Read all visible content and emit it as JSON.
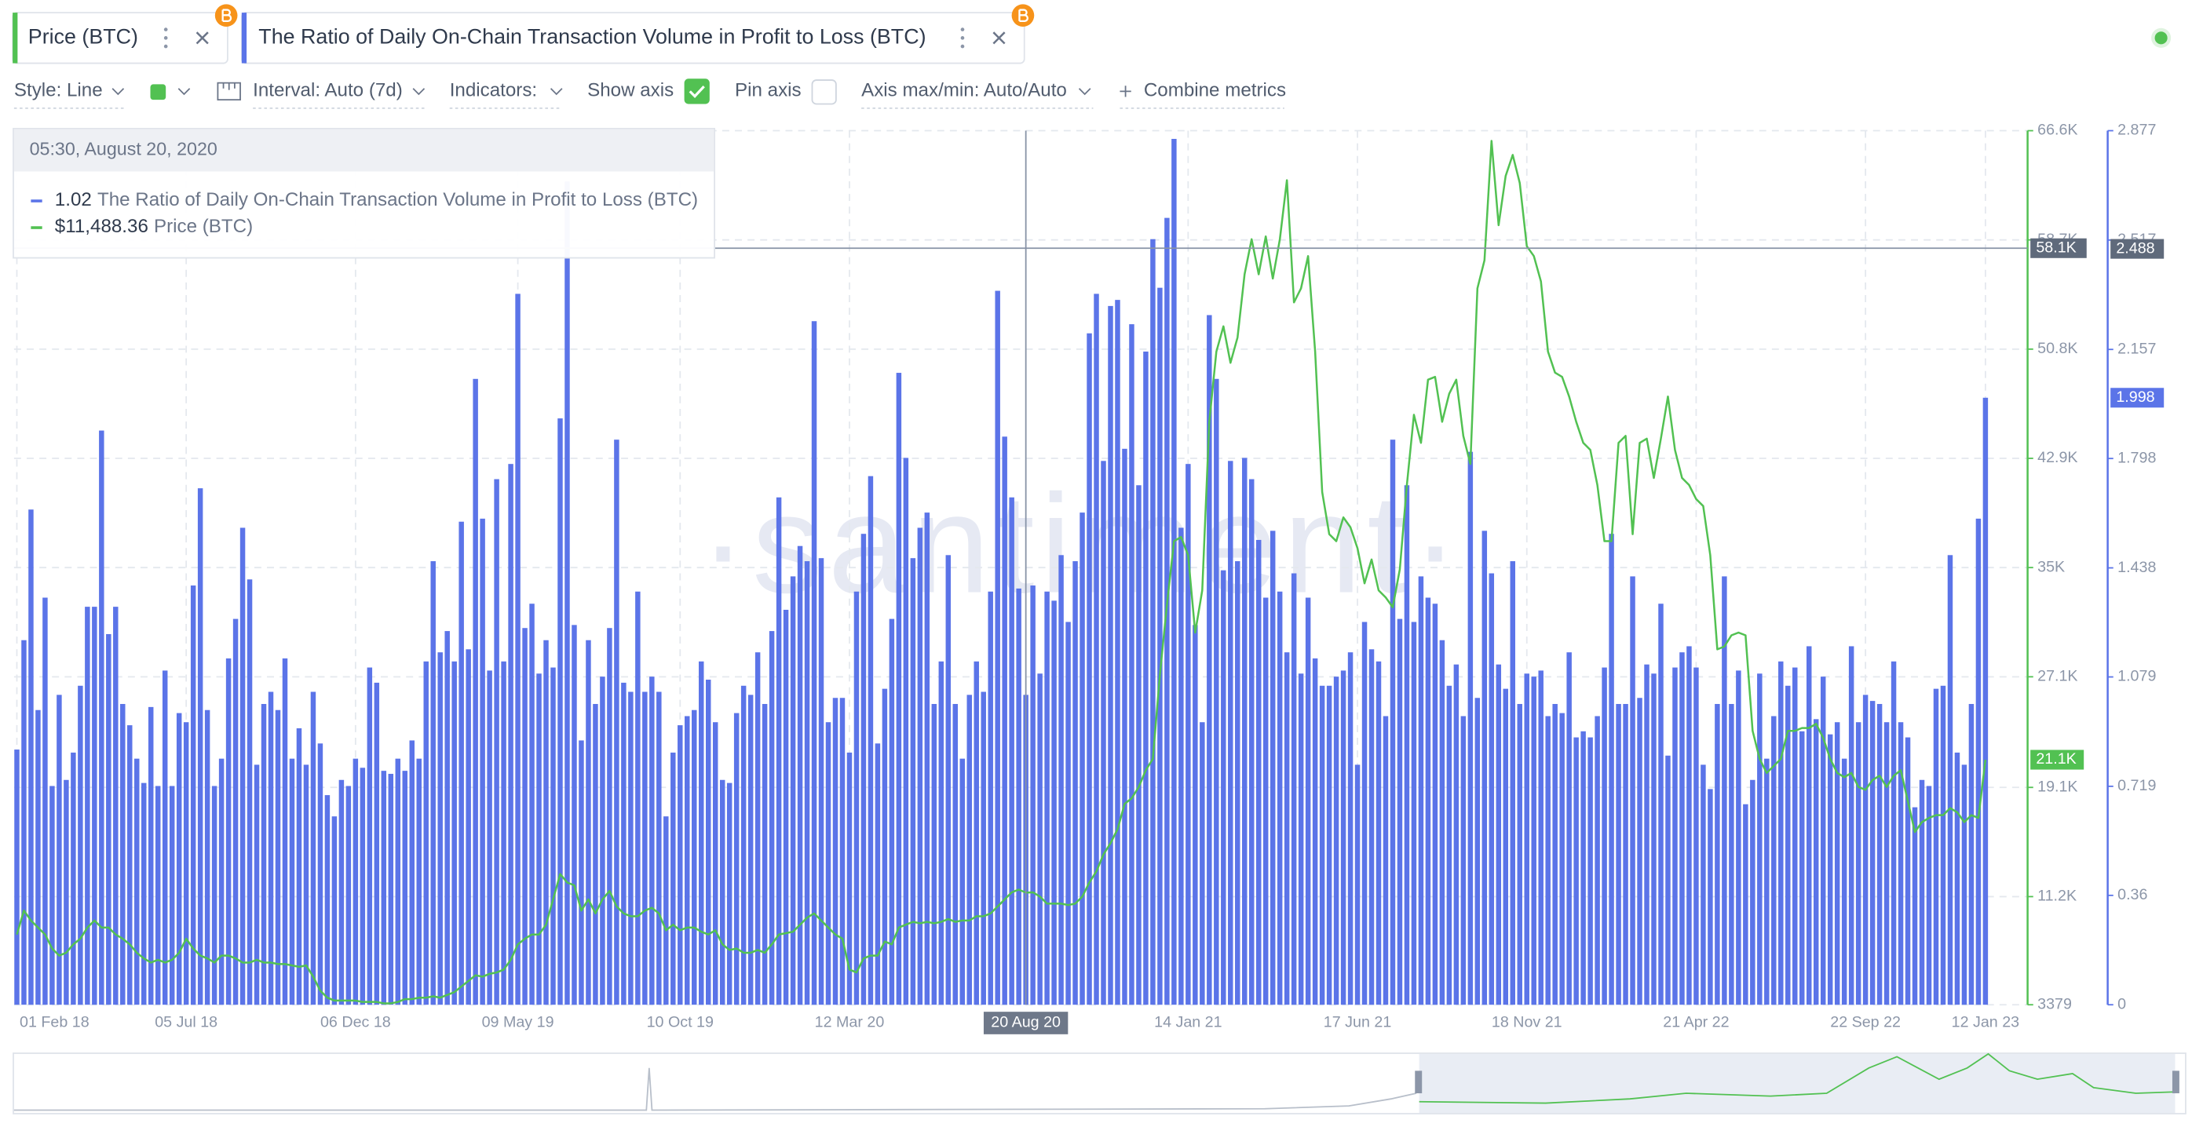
{
  "tabs": [
    "Price (BTC)",
    "The Ratio of Daily On-Chain Transaction Volume in Profit to Loss (BTC)"
  ],
  "toolbar": {
    "style": "Style: Line",
    "interval": "Interval: Auto (7d)",
    "indicators": "Indicators:",
    "show_axis": "Show axis",
    "pin_axis": "Pin axis",
    "axis_minmax": "Axis max/min: Auto/Auto",
    "combine": "Combine metrics"
  },
  "chart_data": {
    "type": "bar_line",
    "watermark": "·santiment·",
    "categories": [
      "01 Feb 18",
      null,
      null,
      null,
      null,
      null,
      null,
      null,
      null,
      null,
      null,
      null,
      null,
      null,
      null,
      null,
      null,
      null,
      null,
      null,
      null,
      null,
      null,
      null,
      "05 Jul 18",
      null,
      null,
      null,
      null,
      null,
      null,
      null,
      null,
      null,
      null,
      null,
      null,
      null,
      null,
      null,
      null,
      null,
      null,
      null,
      null,
      null,
      null,
      null,
      "06 Dec 18",
      null,
      null,
      null,
      null,
      null,
      null,
      null,
      null,
      null,
      null,
      null,
      null,
      null,
      null,
      null,
      null,
      null,
      null,
      null,
      null,
      null,
      null,
      "09 May 19",
      null,
      null,
      null,
      null,
      null,
      null,
      null,
      null,
      null,
      null,
      null,
      null,
      null,
      null,
      null,
      null,
      null,
      null,
      null,
      null,
      null,
      null,
      "10 Oct 19",
      null,
      null,
      null,
      null,
      null,
      null,
      null,
      null,
      null,
      null,
      null,
      null,
      null,
      null,
      null,
      null,
      null,
      null,
      null,
      null,
      null,
      null,
      null,
      "12 Mar 20",
      null,
      null,
      null,
      null,
      null,
      null,
      null,
      null,
      null,
      null,
      null,
      null,
      null,
      null,
      null,
      null,
      null,
      null,
      null,
      null,
      null,
      null,
      null,
      null,
      "20 Aug 20",
      null,
      null,
      null,
      null,
      null,
      null,
      null,
      null,
      null,
      null,
      null,
      null,
      null,
      null,
      null,
      null,
      null,
      null,
      null,
      null,
      null,
      null,
      "14 Jan 21",
      null,
      null,
      null,
      null,
      null,
      null,
      null,
      null,
      null,
      null,
      null,
      null,
      null,
      null,
      null,
      null,
      null,
      null,
      null,
      null,
      null,
      null,
      null,
      "17 Jun 21",
      null,
      null,
      null,
      null,
      null,
      null,
      null,
      null,
      null,
      null,
      null,
      null,
      null,
      null,
      null,
      null,
      null,
      null,
      null,
      null,
      null,
      null,
      null,
      "18 Nov 21",
      null,
      null,
      null,
      null,
      null,
      null,
      null,
      null,
      null,
      null,
      null,
      null,
      null,
      null,
      null,
      null,
      null,
      null,
      null,
      null,
      null,
      null,
      null,
      "21 Apr 22",
      null,
      null,
      null,
      null,
      null,
      null,
      null,
      null,
      null,
      null,
      null,
      null,
      null,
      null,
      null,
      null,
      null,
      null,
      null,
      null,
      null,
      null,
      null,
      "22 Sep 22",
      null,
      null,
      null,
      null,
      null,
      null,
      null,
      null,
      null,
      null,
      null,
      null,
      null,
      null,
      null,
      null,
      "12 Jan 23"
    ],
    "series": [
      {
        "name": "The Ratio of Daily On-Chain Transaction Volume in Profit to Loss (BTC)",
        "type": "bar",
        "axis": "y2",
        "color": "#5b74e8",
        "last_label": "1.998",
        "tooltip_label": "1.02",
        "values": [
          0.84,
          1.2,
          1.63,
          0.97,
          1.34,
          0.72,
          1.02,
          0.74,
          0.83,
          1.05,
          1.31,
          1.31,
          1.89,
          1.22,
          1.31,
          0.99,
          0.92,
          0.81,
          0.73,
          0.98,
          0.72,
          1.1,
          0.72,
          0.96,
          0.93,
          1.38,
          1.7,
          0.97,
          0.72,
          0.81,
          1.14,
          1.27,
          1.57,
          1.4,
          0.79,
          0.99,
          1.03,
          0.97,
          1.14,
          0.81,
          0.91,
          0.79,
          1.03,
          0.86,
          0.69,
          0.62,
          0.74,
          0.72,
          0.81,
          0.78,
          1.11,
          1.06,
          0.77,
          0.76,
          0.81,
          0.77,
          0.87,
          0.81,
          1.13,
          1.46,
          1.16,
          1.23,
          1.13,
          1.59,
          1.17,
          2.06,
          1.6,
          1.1,
          1.73,
          1.13,
          1.78,
          2.34,
          1.24,
          1.32,
          1.09,
          1.2,
          1.11,
          1.93,
          2.71,
          1.25,
          0.87,
          1.2,
          0.99,
          1.08,
          1.24,
          1.86,
          1.06,
          1.03,
          1.36,
          1.03,
          1.08,
          1.03,
          0.62,
          0.83,
          0.92,
          0.95,
          0.97,
          1.13,
          1.07,
          0.93,
          0.74,
          0.73,
          0.96,
          1.05,
          1.02,
          1.16,
          0.99,
          1.23,
          1.67,
          1.3,
          1.41,
          1.51,
          1.46,
          2.25,
          1.47,
          0.93,
          1.01,
          1.01,
          0.83,
          1.36,
          1.55,
          1.74,
          0.86,
          1.04,
          1.27,
          2.08,
          1.8,
          1.47,
          1.57,
          1.62,
          0.99,
          1.13,
          1.48,
          0.99,
          0.81,
          1.02,
          1.13,
          1.03,
          1.36,
          2.35,
          1.87,
          1.67,
          1.37,
          1.02,
          1.38,
          1.09,
          1.36,
          1.33,
          1.48,
          1.26,
          1.46,
          1.62,
          2.21,
          2.34,
          1.79,
          2.3,
          2.32,
          1.83,
          2.24,
          1.71,
          2.15,
          2.52,
          2.36,
          2.59,
          2.85,
          1.57,
          1.78,
          1.25,
          0.93,
          2.27,
          2.06,
          1.43,
          1.79,
          1.46,
          1.8,
          1.73,
          1.53,
          1.34,
          1.56,
          1.36,
          1.16,
          1.42,
          1.09,
          1.34,
          1.14,
          1.05,
          1.05,
          1.08,
          1.1,
          1.16,
          0.79,
          1.26,
          1.17,
          1.13,
          0.95,
          1.86,
          1.27,
          1.71,
          1.26,
          1.41,
          1.34,
          1.32,
          1.2,
          1.05,
          1.12,
          0.95,
          1.82,
          1.01,
          1.56,
          1.42,
          1.12,
          1.04,
          1.46,
          0.99,
          1.09,
          1.08,
          1.1,
          0.95,
          0.99,
          0.96,
          1.16,
          0.88,
          0.9,
          0.88,
          0.95,
          1.11,
          1.55,
          0.99,
          0.99,
          1.41,
          1.01,
          1.12,
          1.09,
          1.32,
          0.82,
          1.11,
          1.16,
          1.18,
          1.11,
          0.79,
          0.71,
          0.99,
          1.41,
          0.99,
          1.1,
          0.66,
          0.74,
          1.09,
          0.81,
          0.95,
          1.13,
          1.05,
          1.11,
          0.9,
          1.18,
          0.94,
          1.08,
          0.89,
          0.93,
          0.81,
          1.18,
          0.93,
          1.02,
          1.0,
          0.99,
          0.93,
          1.13,
          0.93,
          0.88,
          0.65,
          0.74,
          0.72,
          1.04,
          1.05,
          1.48,
          0.83,
          0.79,
          0.99,
          1.6,
          1.998
        ]
      },
      {
        "name": "Price (BTC)",
        "type": "line",
        "axis": "y",
        "color": "#52c152",
        "last_label": "21.1K",
        "tooltip_label": "$11,488.36",
        "values": [
          8460,
          10190,
          9475,
          8965,
          8460,
          7445,
          6935,
          7140,
          7750,
          8155,
          8965,
          9475,
          8965,
          8965,
          8460,
          8155,
          7750,
          7140,
          6730,
          6430,
          6630,
          6430,
          6630,
          7140,
          8155,
          7445,
          6935,
          6730,
          6430,
          6935,
          6935,
          6730,
          6430,
          6430,
          6630,
          6430,
          6430,
          6325,
          6325,
          6225,
          6120,
          6225,
          5410,
          4395,
          3890,
          3680,
          3680,
          3680,
          3680,
          3580,
          3580,
          3580,
          3480,
          3480,
          3580,
          3785,
          3785,
          3890,
          3890,
          3990,
          3890,
          4090,
          4290,
          4700,
          5100,
          5510,
          5410,
          5615,
          5715,
          5920,
          6630,
          7750,
          8155,
          8460,
          8460,
          9170,
          11000,
          12830,
          12220,
          12015,
          10190,
          11000,
          9985,
          11000,
          11610,
          10490,
          9985,
          9780,
          9780,
          10190,
          10390,
          9985,
          8765,
          9170,
          8765,
          8965,
          8965,
          8660,
          8460,
          8765,
          7750,
          7340,
          7445,
          7140,
          7140,
          7340,
          7140,
          7750,
          8460,
          8560,
          8660,
          9170,
          9680,
          9985,
          9475,
          8965,
          8460,
          8155,
          5920,
          5715,
          6730,
          6935,
          6935,
          7950,
          7750,
          8965,
          9170,
          9375,
          9270,
          9375,
          9270,
          9375,
          9575,
          9375,
          9475,
          9475,
          9780,
          9780,
          9985,
          10490,
          11000,
          11510,
          11710,
          11488.36,
          11510,
          11200,
          10695,
          10695,
          10695,
          10590,
          10695,
          11200,
          12220,
          13030,
          14250,
          15060,
          16080,
          17910,
          18315,
          19130,
          20345,
          21160,
          27255,
          32335,
          36910,
          37210,
          35890,
          30300,
          33350,
          45545,
          50620,
          52450,
          49810,
          51640,
          56210,
          58750,
          56210,
          58950,
          55905,
          58750,
          63020,
          54180,
          55195,
          57530,
          50620,
          40460,
          37415,
          36910,
          38630,
          37920,
          36400,
          33860,
          35585,
          33350,
          32840,
          32130,
          34875,
          40970,
          46050,
          44020,
          48590,
          48795,
          45545,
          47575,
          48590,
          44525,
          42495,
          55195,
          57225,
          65860,
          59765,
          63325,
          64850,
          62815,
          58245,
          57530,
          55700,
          50620,
          49100,
          48795,
          47370,
          45545,
          44020,
          43510,
          40970,
          36910,
          36910,
          44020,
          44525,
          37415,
          44020,
          44325,
          41480,
          44325,
          47370,
          43510,
          41480,
          40970,
          39955,
          39450,
          35890,
          29085,
          29290,
          30100,
          30300,
          30100,
          23190,
          21160,
          20145,
          20650,
          21160,
          23190,
          23190,
          23395,
          23395,
          23700,
          22685,
          21160,
          20145,
          19840,
          20145,
          19130,
          18925,
          19635,
          19940,
          19130,
          19940,
          20345,
          18110,
          15875,
          16590,
          16890,
          17095,
          17095,
          17600,
          17300,
          16590,
          17095,
          16890,
          21100
        ]
      }
    ],
    "ylim": [
      3379,
      66600
    ],
    "yticks": [
      3379,
      {
        "value": 11200,
        "label": "11.2K"
      },
      {
        "value": 19100,
        "label": "19.1K"
      },
      {
        "value": 27100,
        "label": "27.1K"
      },
      {
        "value": 35000,
        "label": "35K"
      },
      {
        "value": 42900,
        "label": "42.9K"
      },
      {
        "value": 50800,
        "label": "50.8K"
      },
      {
        "value": 58700,
        "label": "58.7K"
      },
      {
        "value": 66600,
        "label": "66.6K"
      }
    ],
    "y2lim": [
      0,
      2.877
    ],
    "y2ticks": [
      0,
      0.36,
      0.719,
      1.079,
      1.438,
      1.798,
      2.157,
      2.517,
      2.877
    ],
    "grid": true,
    "crosshair": {
      "category": "20 Aug 20",
      "date": "05:30, August 20, 2020",
      "y": {
        "value": 58100,
        "label": "58.1K"
      },
      "y2": 2.488
    }
  }
}
